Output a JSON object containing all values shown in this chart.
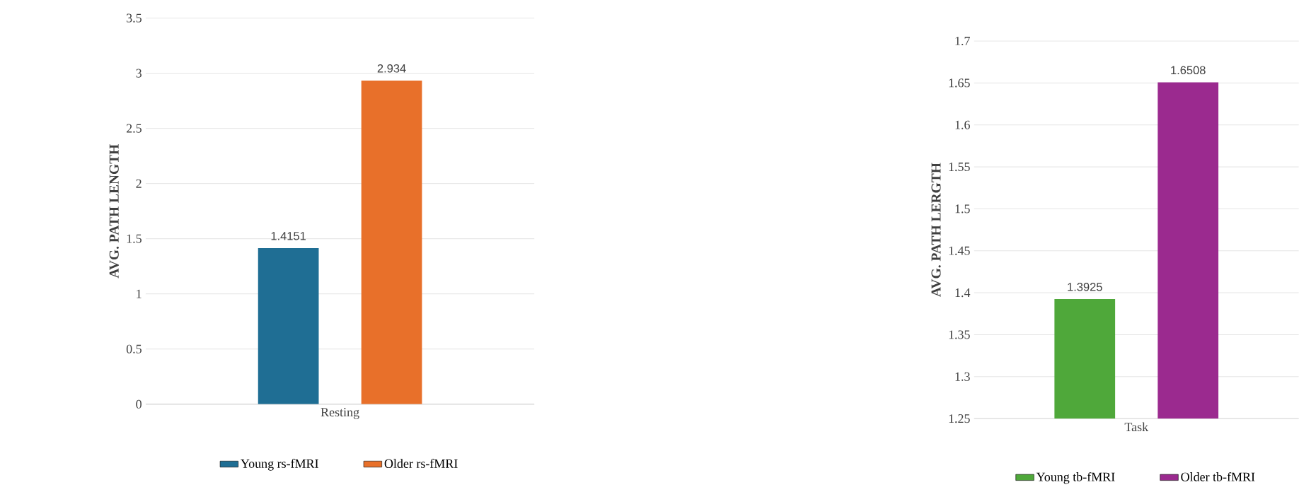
{
  "chart_data": [
    {
      "type": "bar",
      "ylabel": "AVG. PATH LENGTH",
      "categories": [
        "Resting"
      ],
      "series": [
        {
          "name": "Young rs-fMRI",
          "color": "#1f6e94",
          "values": [
            1.4151
          ]
        },
        {
          "name": "Older rs-fMRI",
          "color": "#e8702a",
          "values": [
            2.934
          ]
        }
      ],
      "ylim": [
        0,
        3.5
      ],
      "yticks": [
        0,
        0.5,
        1,
        1.5,
        2,
        2.5,
        3,
        3.5
      ],
      "grid": "y",
      "legend": "bottom",
      "data_labels": true
    },
    {
      "type": "bar",
      "ylabel": "AVG. PATH LERGTH",
      "categories": [
        "Task"
      ],
      "series": [
        {
          "name": "Young tb-fMRI",
          "color": "#4fa83a",
          "values": [
            1.3925
          ]
        },
        {
          "name": "Older tb-fMRI",
          "color": "#9b2a8f",
          "values": [
            1.6508
          ]
        }
      ],
      "ylim": [
        1.25,
        1.7
      ],
      "yticks": [
        1.25,
        1.3,
        1.35,
        1.4,
        1.45,
        1.5,
        1.55,
        1.6,
        1.65,
        1.7
      ],
      "grid": "y",
      "legend": "bottom",
      "data_labels": true
    }
  ]
}
